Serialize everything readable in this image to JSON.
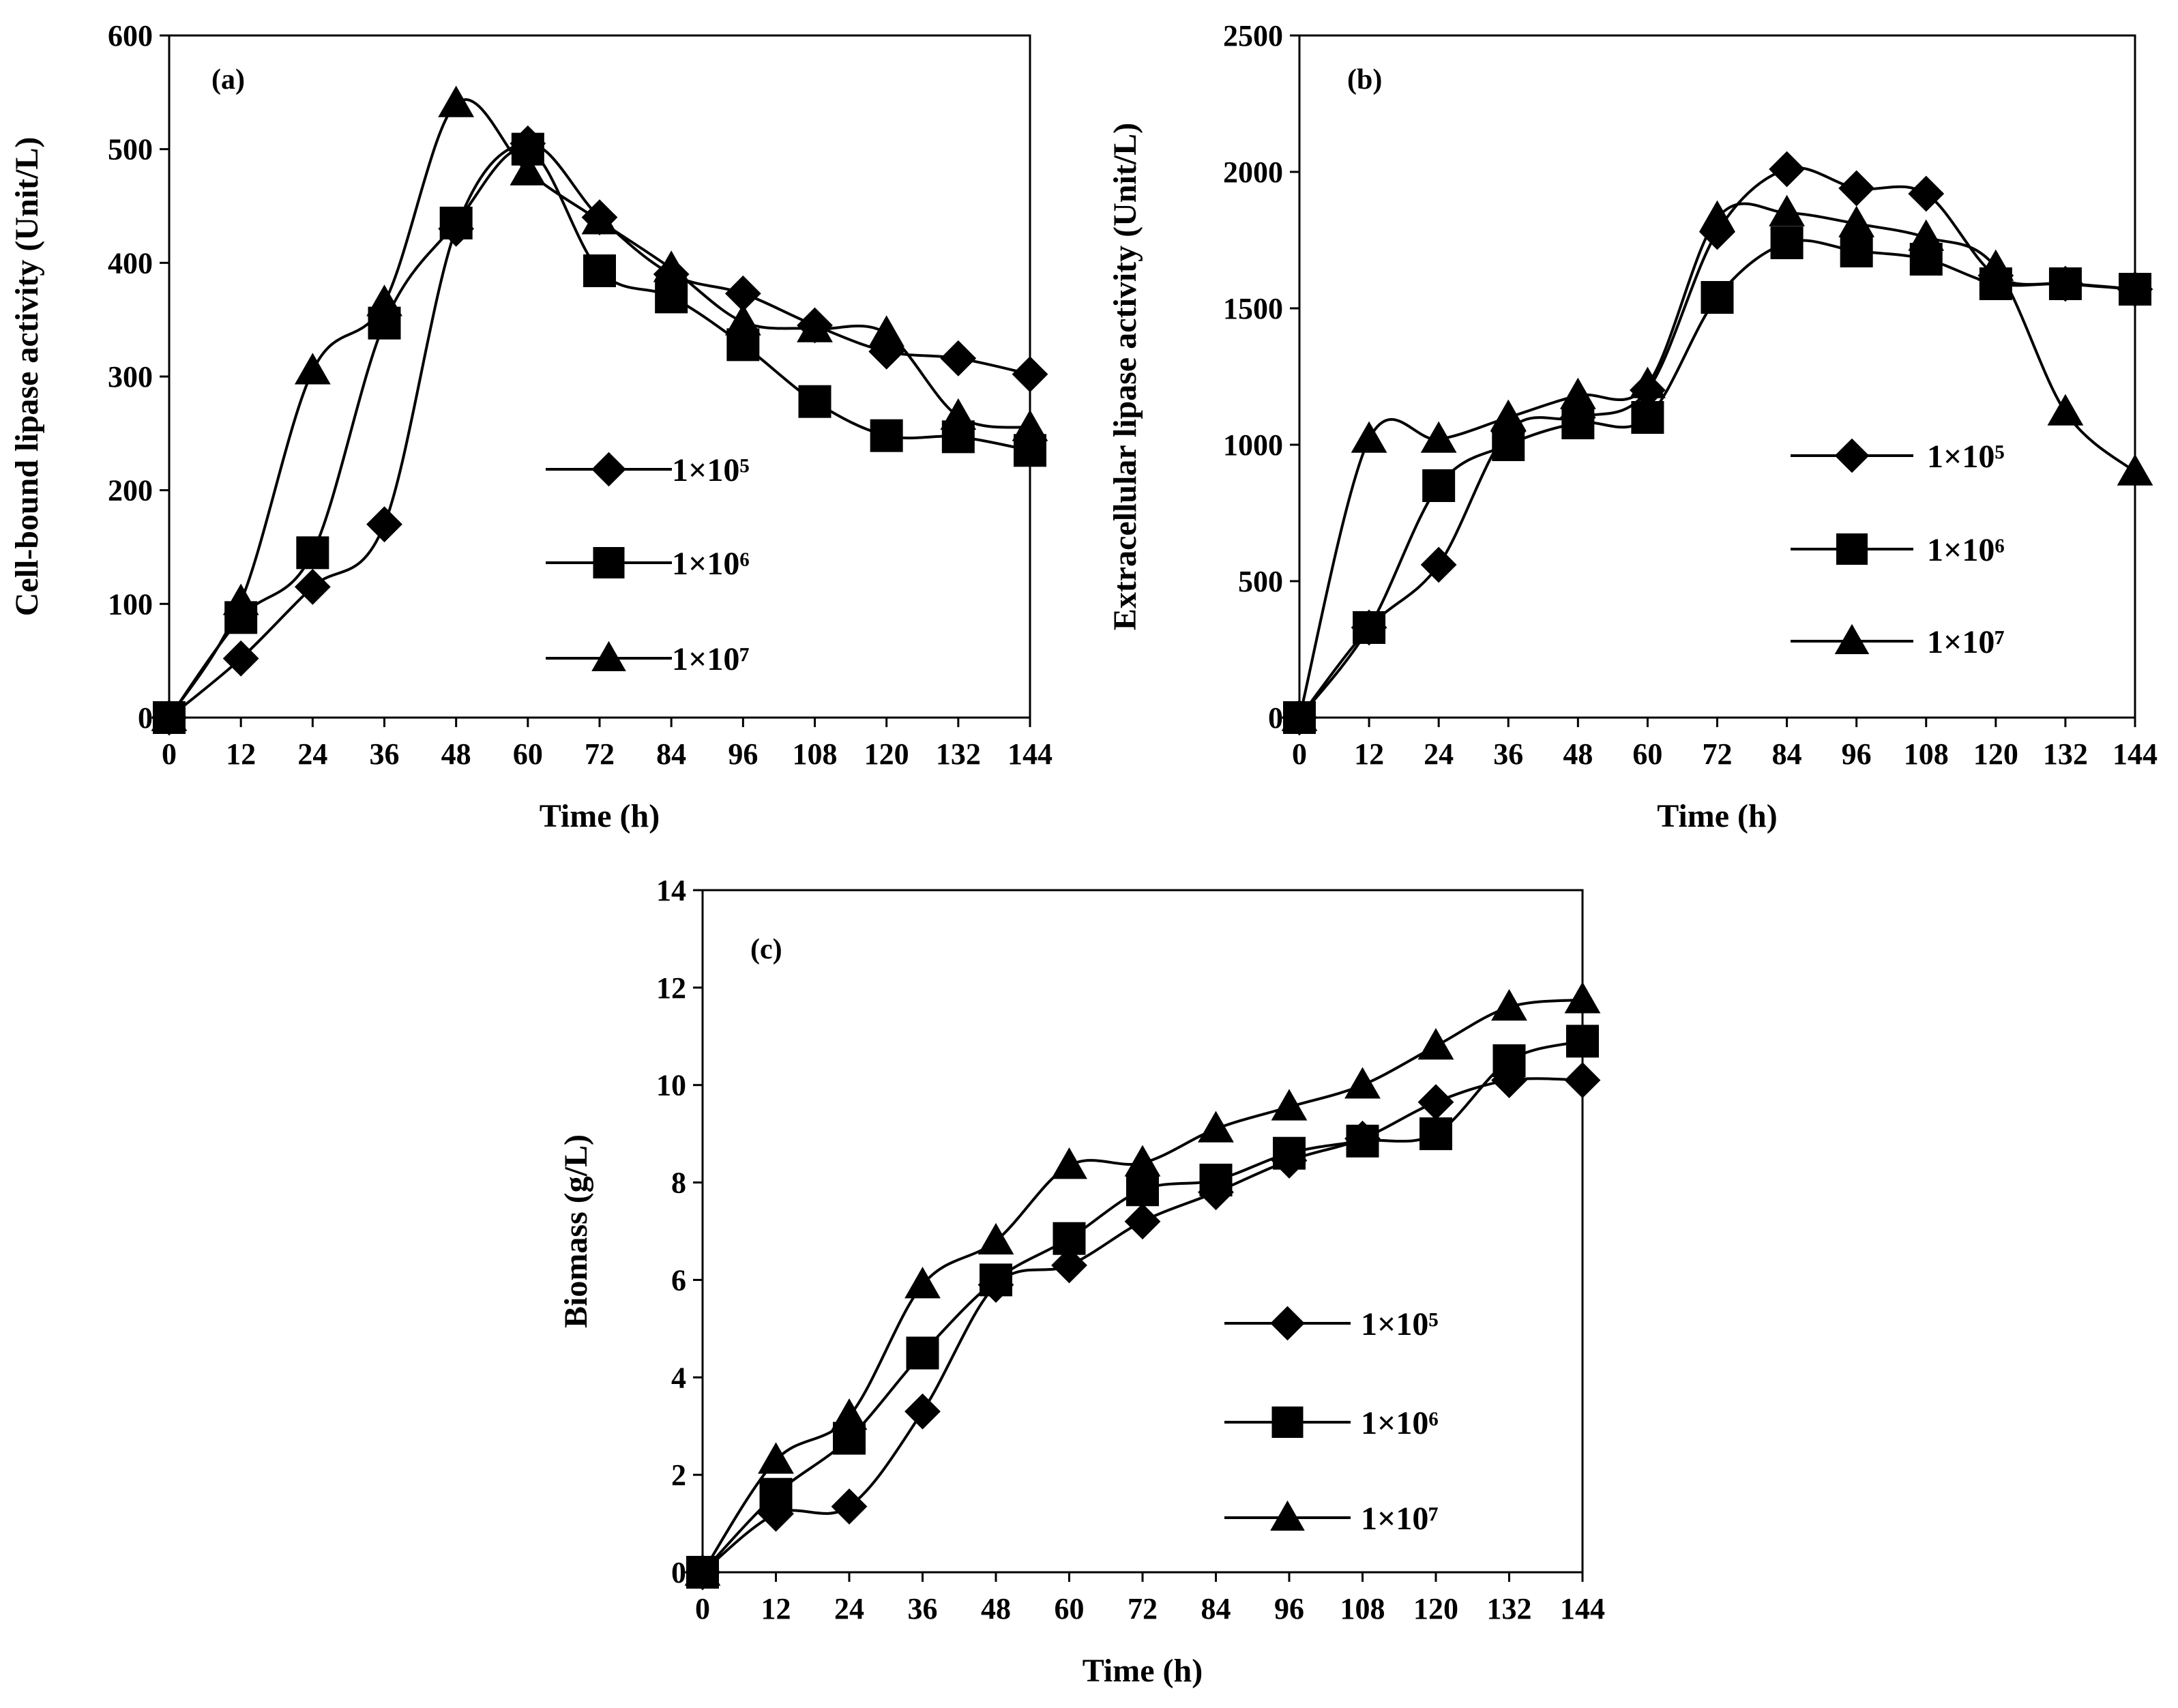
{
  "chart_data": [
    {
      "type": "line",
      "panel_label": "(a)",
      "xlabel": "Time (h)",
      "ylabel": "Cell-bound lipase activity (Unit/L)",
      "x": [
        0,
        12,
        24,
        36,
        48,
        60,
        72,
        84,
        96,
        108,
        120,
        132,
        144
      ],
      "x_tick_labels": [
        "0",
        "12",
        "24",
        "36",
        "48",
        "60",
        "72",
        "84",
        "96",
        "108",
        "120",
        "132",
        "144"
      ],
      "xlim": [
        0,
        144
      ],
      "ylim": [
        0,
        600
      ],
      "y_ticks": [
        0,
        100,
        200,
        300,
        400,
        500,
        600
      ],
      "y_tick_labels": [
        "0",
        "100",
        "200",
        "300",
        "400",
        "500",
        "600"
      ],
      "legend_position": "center-right",
      "series": [
        {
          "name": "1×10⁵",
          "marker": "diamond",
          "values": [
            0,
            52,
            115,
            170,
            430,
            505,
            440,
            390,
            373,
            345,
            322,
            316,
            302
          ]
        },
        {
          "name": "1×10⁶",
          "marker": "square",
          "values": [
            0,
            88,
            145,
            347,
            435,
            500,
            393,
            370,
            328,
            278,
            248,
            247,
            235
          ]
        },
        {
          "name": "1×10⁷",
          "marker": "triangle",
          "values": [
            0,
            102,
            305,
            365,
            540,
            480,
            437,
            395,
            348,
            342,
            338,
            265,
            255
          ]
        }
      ]
    },
    {
      "type": "line",
      "panel_label": "(b)",
      "xlabel": "Time (h)",
      "ylabel": "Extracellular lipase activity (Unit/L)",
      "x": [
        0,
        12,
        24,
        36,
        48,
        60,
        72,
        84,
        96,
        108,
        120,
        132,
        144
      ],
      "x_tick_labels": [
        "0",
        "12",
        "24",
        "36",
        "48",
        "60",
        "72",
        "84",
        "96",
        "108",
        "120",
        "132",
        "144"
      ],
      "xlim": [
        0,
        144
      ],
      "ylim": [
        0,
        2500
      ],
      "y_ticks": [
        0,
        500,
        1000,
        1500,
        2000,
        2500
      ],
      "y_tick_labels": [
        "0",
        "500",
        "1000",
        "1500",
        "2000",
        "2500"
      ],
      "legend_position": "center-right",
      "series": [
        {
          "name": "1×10⁵",
          "marker": "diamond",
          "values": [
            0,
            330,
            560,
            1050,
            1100,
            1200,
            1780,
            2010,
            1940,
            1920,
            1620,
            1590,
            1570
          ]
        },
        {
          "name": "1×10⁶",
          "marker": "square",
          "values": [
            0,
            330,
            850,
            1000,
            1080,
            1100,
            1540,
            1740,
            1710,
            1680,
            1590,
            1590,
            1570
          ]
        },
        {
          "name": "1×10⁷",
          "marker": "triangle",
          "values": [
            0,
            1020,
            1020,
            1100,
            1180,
            1220,
            1830,
            1850,
            1810,
            1760,
            1650,
            1120,
            900
          ]
        }
      ]
    },
    {
      "type": "line",
      "panel_label": "(c)",
      "xlabel": "Time (h)",
      "ylabel": "Biomass (g/L)",
      "x": [
        0,
        12,
        24,
        36,
        48,
        60,
        72,
        84,
        96,
        108,
        120,
        132,
        144
      ],
      "x_tick_labels": [
        "0",
        "12",
        "24",
        "36",
        "48",
        "60",
        "72",
        "84",
        "96",
        "108",
        "120",
        "132",
        "144"
      ],
      "xlim": [
        0,
        144
      ],
      "ylim": [
        0,
        14
      ],
      "y_ticks": [
        0,
        2,
        4,
        6,
        8,
        10,
        12,
        14
      ],
      "y_tick_labels": [
        "0",
        "2",
        "4",
        "6",
        "8",
        "10",
        "12",
        "14"
      ],
      "legend_position": "bottom-right",
      "series": [
        {
          "name": "1×10⁵",
          "marker": "diamond",
          "values": [
            0,
            1.2,
            1.35,
            3.3,
            5.9,
            6.3,
            7.2,
            7.8,
            8.45,
            8.9,
            9.65,
            10.1,
            10.1
          ]
        },
        {
          "name": "1×10⁶",
          "marker": "square",
          "values": [
            0,
            1.6,
            2.75,
            4.5,
            6.0,
            6.85,
            7.85,
            8.05,
            8.6,
            8.85,
            9.0,
            10.5,
            10.9
          ]
        },
        {
          "name": "1×10⁷",
          "marker": "triangle",
          "values": [
            0,
            2.3,
            3.2,
            5.9,
            6.8,
            8.35,
            8.4,
            9.1,
            9.55,
            10.0,
            10.8,
            11.6,
            11.75
          ]
        }
      ]
    }
  ]
}
